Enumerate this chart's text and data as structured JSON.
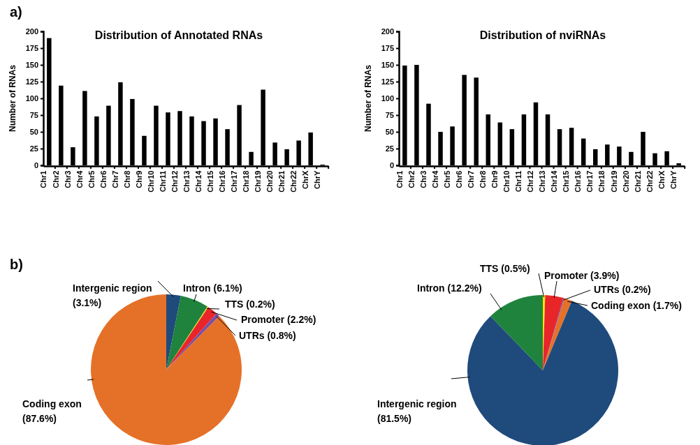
{
  "chart_data": [
    {
      "type": "bar",
      "title": "Distribution of Annotated RNAs",
      "ylabel": "Number of RNAs",
      "annotations": [
        "a)"
      ],
      "color": "#000000",
      "categories": [
        "Chr1",
        "Chr2",
        "Chr3",
        "Chr4",
        "Chr5",
        "Chr6",
        "Chr7",
        "Chr8",
        "Chr9",
        "Chr10",
        "Chr11",
        "Chr12",
        "Chr13",
        "Chr14",
        "Chr15",
        "Chr16",
        "Chr17",
        "Chr18",
        "Chr19",
        "Chr20",
        "Chr21",
        "Chr22",
        "ChrX",
        "ChrY"
      ],
      "values": [
        190,
        119,
        27,
        111,
        73,
        89,
        124,
        99,
        44,
        89,
        79,
        81,
        73,
        66,
        70,
        54,
        90,
        20,
        113,
        34,
        24,
        37,
        49,
        1
      ],
      "ylim": [
        0,
        200
      ],
      "yticks": [
        0,
        25,
        50,
        75,
        100,
        125,
        150,
        175,
        200
      ],
      "grid": false
    },
    {
      "type": "bar",
      "title": "Distribution of nviRNAs",
      "ylabel": "Number of RNAs",
      "color": "#000000",
      "categories": [
        "Chr1",
        "Chr2",
        "Chr3",
        "Chr4",
        "Chr5",
        "Chr6",
        "Chr7",
        "Chr8",
        "Chr9",
        "Chr10",
        "Chr11",
        "Chr12",
        "Chr13",
        "Chr14",
        "Chr15",
        "Chr16",
        "Chr17",
        "Chr18",
        "Chr19",
        "Chr20",
        "Chr21",
        "Chr22",
        "ChrX",
        "ChrY"
      ],
      "values": [
        149,
        150,
        92,
        50,
        58,
        135,
        131,
        76,
        64,
        54,
        76,
        94,
        76,
        54,
        56,
        40,
        24,
        31,
        28,
        20,
        50,
        18,
        21,
        3
      ],
      "ylim": [
        0,
        200
      ],
      "yticks": [
        0,
        25,
        50,
        75,
        100,
        125,
        150,
        175,
        200
      ],
      "grid": false
    },
    {
      "type": "pie",
      "annotations": [
        "b)"
      ],
      "categories": [
        "Intergenic region",
        "Intron",
        "TTS",
        "Promoter",
        "UTRs",
        "Coding exon"
      ],
      "values": [
        3.1,
        6.1,
        0.2,
        2.2,
        0.8,
        87.6
      ],
      "value_labels": [
        "(3.1%)",
        "(6.1%)",
        "(0.2%)",
        "(2.2%)",
        "(0.8%)",
        "(87.6%)"
      ],
      "colors": [
        "#1f4a7c",
        "#1f833e",
        "#f2e600",
        "#e8262a",
        "#7b4ea3",
        "#e57128"
      ]
    },
    {
      "type": "pie",
      "categories": [
        "TTS",
        "Promoter",
        "UTRs",
        "Coding exon",
        "Intergenic region",
        "Intron"
      ],
      "values": [
        0.5,
        3.9,
        0.2,
        1.7,
        81.5,
        12.2
      ],
      "value_labels": [
        "(0.5%)",
        "(3.9%)",
        "(0.2%)",
        "(1.7%)",
        "(81.5%)",
        "(12.2%)"
      ],
      "colors": [
        "#f2e600",
        "#e8262a",
        "#7b4ea3",
        "#e57128",
        "#1f4a7c",
        "#1f833e"
      ]
    }
  ]
}
